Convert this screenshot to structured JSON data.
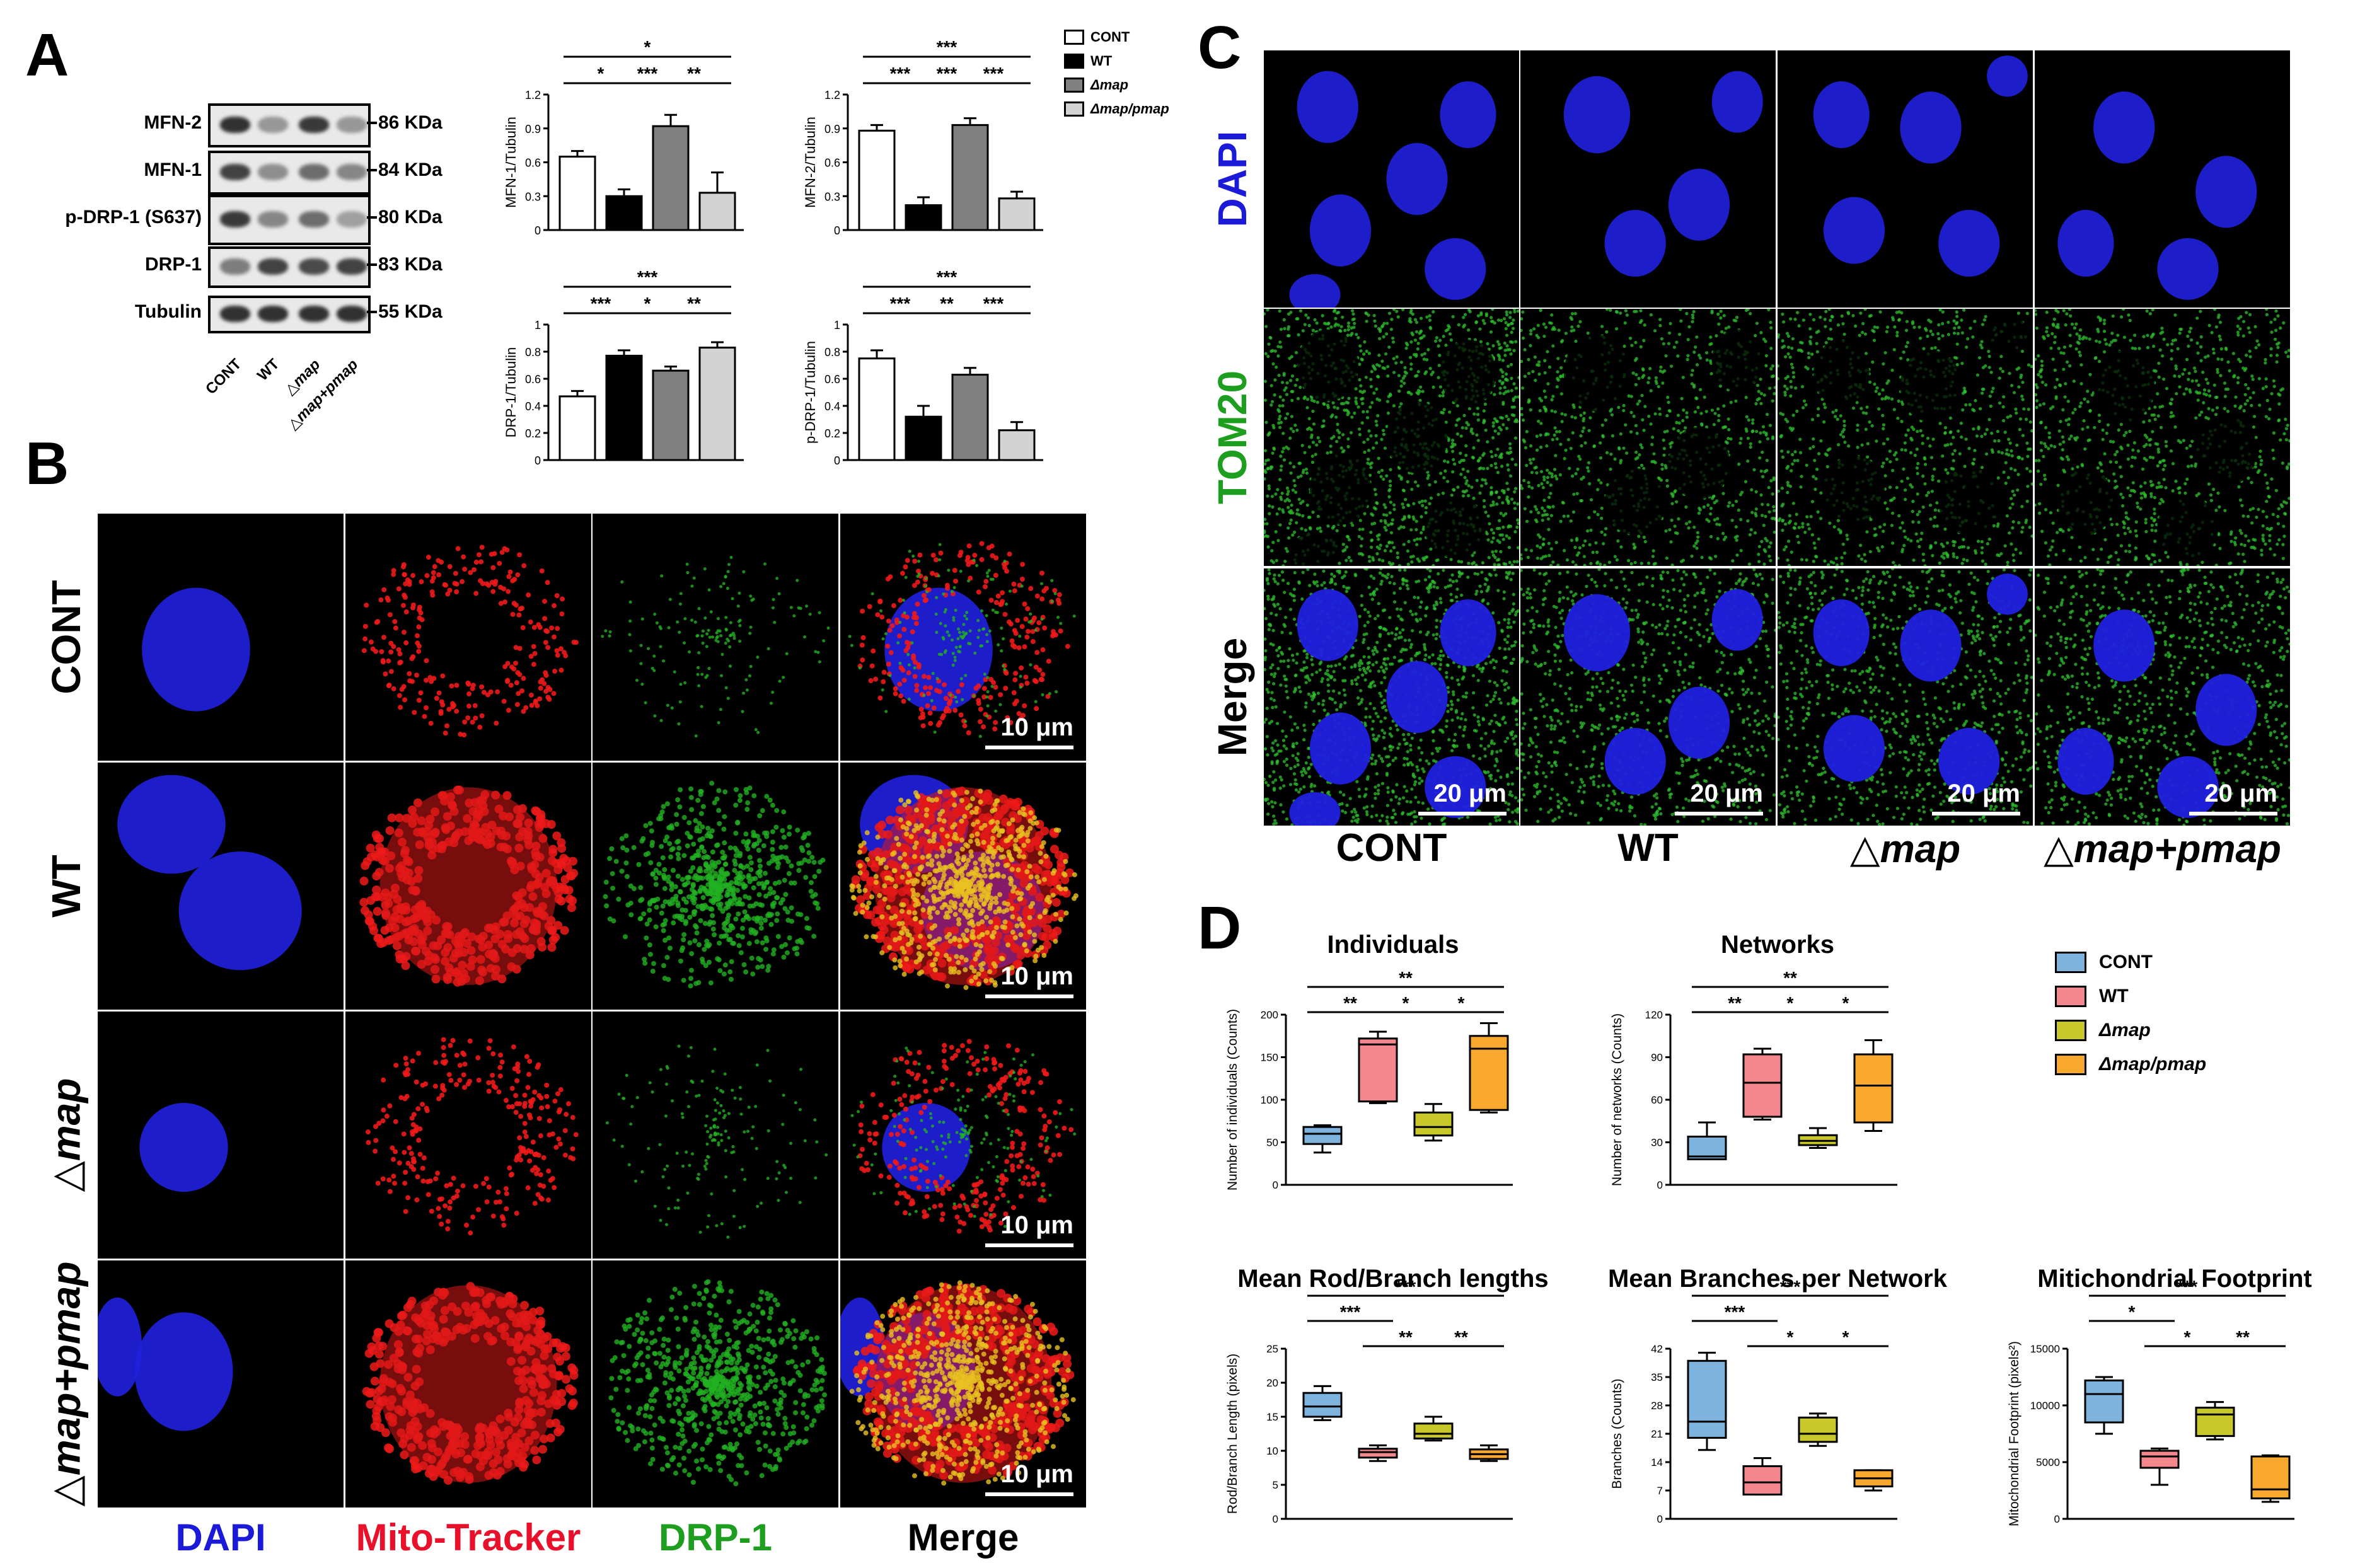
{
  "panels": {
    "a": "A",
    "b": "B",
    "c": "C",
    "d": "D"
  },
  "colors": {
    "dapi": "#1a1ad8",
    "mito": "#e8102a",
    "drp1": "#1e9e1e",
    "cont": "#7db3dc",
    "wt": "#f4878e",
    "dmap": "#c8c82a",
    "dmap_pmap": "#f9a82e"
  },
  "blot": {
    "rows": [
      {
        "label": "MFN-2",
        "kda": "86 KDa"
      },
      {
        "label": "MFN-1",
        "kda": "84 KDa"
      },
      {
        "label": "p-DRP-1 (S637)",
        "kda": "80 KDa"
      },
      {
        "label": "DRP-1",
        "kda": "83 KDa"
      },
      {
        "label": "Tubulin",
        "kda": "55 KDa"
      }
    ],
    "lanes": [
      "CONT",
      "WT",
      "△map",
      "△map+pmap"
    ]
  },
  "bar_legend": [
    "CONT",
    "WT",
    "Δmap",
    "Δmap/pmap"
  ],
  "panelB": {
    "rows": [
      "CONT",
      "WT",
      "△map",
      "△map+pmap"
    ],
    "cols": [
      "DAPI",
      "Mito-Tracker",
      "DRP-1",
      "Merge"
    ],
    "scale": "10 μm"
  },
  "panelC": {
    "rows": [
      "DAPI",
      "TOM20",
      "Merge"
    ],
    "cols": [
      "CONT",
      "WT",
      "△map",
      "△map+pmap"
    ],
    "scale": "20 μm"
  },
  "box_legend": [
    "CONT",
    "WT",
    "Δmap",
    "Δmap/pmap"
  ],
  "chart_data": [
    {
      "type": "bar",
      "ylabel": "MFN-1/Tubulin",
      "ylim": [
        0,
        1.2
      ],
      "yticks": [
        "0",
        "0.3",
        "0.6",
        "0.9",
        "1.2"
      ],
      "categories": [
        "CONT",
        "WT",
        "Δmap",
        "Δmap/pmap"
      ],
      "values": [
        0.65,
        0.3,
        0.92,
        0.33
      ],
      "errors": [
        0.05,
        0.06,
        0.1,
        0.18
      ],
      "sig": [
        {
          "label": "*",
          "from": 0,
          "to": 3,
          "level": 2
        },
        {
          "label": "*",
          "from": 0,
          "to": 1,
          "level": 1
        },
        {
          "label": "***",
          "from": 1,
          "to": 2,
          "level": 1
        },
        {
          "label": "**",
          "from": 2,
          "to": 3,
          "level": 1
        }
      ]
    },
    {
      "type": "bar",
      "ylabel": "MFN-2/Tubulin",
      "ylim": [
        0,
        1.2
      ],
      "yticks": [
        "0",
        "0.3",
        "0.6",
        "0.9",
        "1.2"
      ],
      "categories": [
        "CONT",
        "WT",
        "Δmap",
        "Δmap/pmap"
      ],
      "values": [
        0.88,
        0.22,
        0.93,
        0.28
      ],
      "errors": [
        0.05,
        0.07,
        0.06,
        0.06
      ],
      "sig": [
        {
          "label": "***",
          "from": 0,
          "to": 3,
          "level": 2
        },
        {
          "label": "***",
          "from": 0,
          "to": 1,
          "level": 1
        },
        {
          "label": "***",
          "from": 1,
          "to": 2,
          "level": 1
        },
        {
          "label": "***",
          "from": 2,
          "to": 3,
          "level": 1
        }
      ]
    },
    {
      "type": "bar",
      "ylabel": "DRP-1/Tubulin",
      "ylim": [
        0,
        1.0
      ],
      "yticks": [
        "0",
        "0.2",
        "0.4",
        "0.6",
        "0.8",
        "1"
      ],
      "categories": [
        "CONT",
        "WT",
        "Δmap",
        "Δmap/pmap"
      ],
      "values": [
        0.47,
        0.77,
        0.66,
        0.83
      ],
      "errors": [
        0.04,
        0.04,
        0.03,
        0.04
      ],
      "sig": [
        {
          "label": "***",
          "from": 0,
          "to": 3,
          "level": 2
        },
        {
          "label": "***",
          "from": 0,
          "to": 1,
          "level": 1
        },
        {
          "label": "*",
          "from": 1,
          "to": 2,
          "level": 1
        },
        {
          "label": "**",
          "from": 2,
          "to": 3,
          "level": 1
        }
      ]
    },
    {
      "type": "bar",
      "ylabel": "p-DRP-1/Tubulin",
      "ylim": [
        0,
        1.0
      ],
      "yticks": [
        "0",
        "0.2",
        "0.4",
        "0.6",
        "0.8",
        "1"
      ],
      "categories": [
        "CONT",
        "WT",
        "Δmap",
        "Δmap/pmap"
      ],
      "values": [
        0.75,
        0.32,
        0.63,
        0.22
      ],
      "errors": [
        0.06,
        0.08,
        0.05,
        0.06
      ],
      "sig": [
        {
          "label": "***",
          "from": 0,
          "to": 3,
          "level": 2
        },
        {
          "label": "***",
          "from": 0,
          "to": 1,
          "level": 1
        },
        {
          "label": "**",
          "from": 1,
          "to": 2,
          "level": 1
        },
        {
          "label": "***",
          "from": 2,
          "to": 3,
          "level": 1
        }
      ]
    },
    {
      "type": "box",
      "title": "Individuals",
      "ylabel": "Number of individuals (Counts)",
      "ylim": [
        0,
        200
      ],
      "yticks": [
        "0",
        "50",
        "100",
        "150",
        "200"
      ],
      "boxes": [
        {
          "min": 38,
          "q1": 48,
          "median": 60,
          "q3": 68,
          "max": 70
        },
        {
          "min": 96,
          "q1": 98,
          "median": 165,
          "q3": 172,
          "max": 180
        },
        {
          "min": 52,
          "q1": 58,
          "median": 68,
          "q3": 85,
          "max": 95
        },
        {
          "min": 85,
          "q1": 88,
          "median": 160,
          "q3": 175,
          "max": 190
        }
      ],
      "sig": [
        {
          "label": "**",
          "from": 0,
          "to": 3,
          "level": 2
        },
        {
          "label": "**",
          "from": 0,
          "to": 1,
          "level": 1
        },
        {
          "label": "*",
          "from": 1,
          "to": 2,
          "level": 1
        },
        {
          "label": "*",
          "from": 2,
          "to": 3,
          "level": 1
        }
      ]
    },
    {
      "type": "box",
      "title": "Networks",
      "ylabel": "Number of networks (Counts)",
      "ylim": [
        0,
        120
      ],
      "yticks": [
        "0",
        "30",
        "60",
        "90",
        "120"
      ],
      "boxes": [
        {
          "min": 18,
          "q1": 18,
          "median": 20,
          "q3": 34,
          "max": 44
        },
        {
          "min": 46,
          "q1": 48,
          "median": 72,
          "q3": 92,
          "max": 96
        },
        {
          "min": 26,
          "q1": 28,
          "median": 31,
          "q3": 35,
          "max": 40
        },
        {
          "min": 38,
          "q1": 44,
          "median": 70,
          "q3": 92,
          "max": 102
        }
      ],
      "sig": [
        {
          "label": "**",
          "from": 0,
          "to": 3,
          "level": 2
        },
        {
          "label": "**",
          "from": 0,
          "to": 1,
          "level": 1
        },
        {
          "label": "*",
          "from": 1,
          "to": 2,
          "level": 1
        },
        {
          "label": "*",
          "from": 2,
          "to": 3,
          "level": 1
        }
      ]
    },
    {
      "type": "box",
      "title": "Mean Rod/Branch lengths",
      "ylabel": "Rod/Branch Length (pixels)",
      "ylim": [
        0,
        25
      ],
      "yticks": [
        "0",
        "5",
        "10",
        "15",
        "20",
        "25"
      ],
      "boxes": [
        {
          "min": 14.5,
          "q1": 15,
          "median": 16.5,
          "q3": 18.5,
          "max": 19.5
        },
        {
          "min": 8.5,
          "q1": 9,
          "median": 9.8,
          "q3": 10.3,
          "max": 10.8
        },
        {
          "min": 11.5,
          "q1": 11.8,
          "median": 12.5,
          "q3": 14,
          "max": 15
        },
        {
          "min": 8.5,
          "q1": 8.8,
          "median": 9.5,
          "q3": 10.2,
          "max": 10.8
        }
      ],
      "sig": [
        {
          "label": "***",
          "from": 0,
          "to": 3,
          "level": 3
        },
        {
          "label": "***",
          "from": 0,
          "to": 1,
          "level": 2
        },
        {
          "label": "**",
          "from": 1,
          "to": 2,
          "level": 1
        },
        {
          "label": "**",
          "from": 2,
          "to": 3,
          "level": 1
        }
      ]
    },
    {
      "type": "box",
      "title": "Mean Branches per Network",
      "ylabel": "Branches (Counts)",
      "ylim": [
        0,
        42
      ],
      "yticks": [
        "0",
        "7",
        "14",
        "21",
        "28",
        "35",
        "42"
      ],
      "boxes": [
        {
          "min": 17,
          "q1": 20,
          "median": 24,
          "q3": 39,
          "max": 41
        },
        {
          "min": 6,
          "q1": 6,
          "median": 9,
          "q3": 13,
          "max": 15
        },
        {
          "min": 18,
          "q1": 19,
          "median": 21,
          "q3": 25,
          "max": 26
        },
        {
          "min": 7,
          "q1": 8,
          "median": 10,
          "q3": 12,
          "max": 12
        }
      ],
      "sig": [
        {
          "label": "***",
          "from": 0,
          "to": 3,
          "level": 3
        },
        {
          "label": "***",
          "from": 0,
          "to": 1,
          "level": 2
        },
        {
          "label": "*",
          "from": 1,
          "to": 2,
          "level": 1
        },
        {
          "label": "*",
          "from": 2,
          "to": 3,
          "level": 1
        }
      ]
    },
    {
      "type": "box",
      "title": "Mitichondrial Footprint",
      "ylabel": "Mitochondrial Footprint (pixels²)",
      "ylim": [
        0,
        15000
      ],
      "yticks": [
        "0",
        "5000",
        "10000",
        "15000"
      ],
      "boxes": [
        {
          "min": 7500,
          "q1": 8500,
          "median": 11000,
          "q3": 12200,
          "max": 12500
        },
        {
          "min": 3000,
          "q1": 4500,
          "median": 5500,
          "q3": 6000,
          "max": 6200
        },
        {
          "min": 7000,
          "q1": 7300,
          "median": 9200,
          "q3": 9800,
          "max": 10300
        },
        {
          "min": 1500,
          "q1": 1800,
          "median": 2600,
          "q3": 5500,
          "max": 5600
        }
      ],
      "sig": [
        {
          "label": "***",
          "from": 0,
          "to": 3,
          "level": 3
        },
        {
          "label": "*",
          "from": 0,
          "to": 1,
          "level": 2
        },
        {
          "label": "*",
          "from": 1,
          "to": 2,
          "level": 1
        },
        {
          "label": "**",
          "from": 2,
          "to": 3,
          "level": 1
        }
      ]
    }
  ]
}
